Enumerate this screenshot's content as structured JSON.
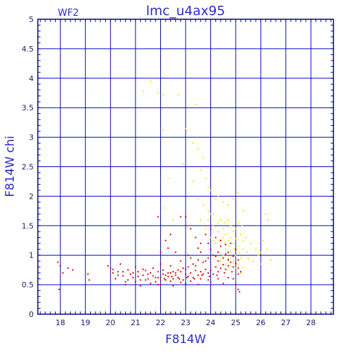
{
  "chart_data": {
    "type": "scatter",
    "title": "lmc_u4ax95",
    "corner_label": "WF2",
    "xlabel": "F814W",
    "ylabel": "F814W  chi",
    "xlim": [
      17.1,
      28.9
    ],
    "ylim": [
      0,
      5
    ],
    "xticks": [
      18,
      19,
      20,
      21,
      22,
      23,
      24,
      25,
      26,
      27,
      28
    ],
    "yticks": [
      0,
      0.5,
      1,
      1.5,
      2,
      2.5,
      3,
      3.5,
      4,
      4.5,
      5
    ],
    "ytick_labels": [
      "0",
      "0.5",
      "1",
      "1.5",
      "2",
      "2.5",
      "3",
      "3.5",
      "4",
      "4.5",
      "5"
    ],
    "grid": true,
    "colors": {
      "axis": "#00008b",
      "grid": "#0000cd",
      "text": "#2a2ad0",
      "series_red": "#e00000",
      "series_yellow": "#f2ea00"
    },
    "series": [
      {
        "color": "#f2ea00",
        "points": [
          [
            21.3,
            3.78
          ],
          [
            21.6,
            3.95
          ],
          [
            21.9,
            3.75
          ],
          [
            22.1,
            3.72
          ],
          [
            22.7,
            3.72
          ],
          [
            22.1,
            3.12
          ],
          [
            23.0,
            3.15
          ],
          [
            23.4,
            3.55
          ],
          [
            22.9,
            2.55
          ],
          [
            22.3,
            2.3
          ],
          [
            23.3,
            2.9
          ],
          [
            23.5,
            2.8
          ],
          [
            23.7,
            2.65
          ],
          [
            23.6,
            2.45
          ],
          [
            23.8,
            2.3
          ],
          [
            23.9,
            2.15
          ],
          [
            24.0,
            2.1
          ],
          [
            23.3,
            2.25
          ],
          [
            22.2,
            1.8
          ],
          [
            22.5,
            1.6
          ],
          [
            23.5,
            1.95
          ],
          [
            23.7,
            1.85
          ],
          [
            23.9,
            1.75
          ],
          [
            24.0,
            1.7
          ],
          [
            24.2,
            1.95
          ],
          [
            24.3,
            2.0
          ],
          [
            24.5,
            1.9
          ],
          [
            24.7,
            1.85
          ],
          [
            24.9,
            1.95
          ],
          [
            25.1,
            2.05
          ],
          [
            25.3,
            1.75
          ],
          [
            24.4,
            1.6
          ],
          [
            24.6,
            1.55
          ],
          [
            24.8,
            1.5
          ],
          [
            25.0,
            1.45
          ],
          [
            25.2,
            1.35
          ],
          [
            24.1,
            1.5
          ],
          [
            24.3,
            1.4
          ],
          [
            24.5,
            1.3
          ],
          [
            24.7,
            1.25
          ],
          [
            24.9,
            1.2
          ],
          [
            25.1,
            1.15
          ],
          [
            25.3,
            1.1
          ],
          [
            24.2,
            1.2
          ],
          [
            24.4,
            1.15
          ],
          [
            24.6,
            1.1
          ],
          [
            24.8,
            1.05
          ],
          [
            25.0,
            1.0
          ],
          [
            25.2,
            0.95
          ],
          [
            24.3,
            1.05
          ],
          [
            24.5,
            1.0
          ],
          [
            24.7,
            0.95
          ],
          [
            24.9,
            0.9
          ],
          [
            25.1,
            0.85
          ],
          [
            25.3,
            0.8
          ],
          [
            24.6,
            1.35
          ],
          [
            24.8,
            1.3
          ],
          [
            25.0,
            1.28
          ],
          [
            25.4,
            1.3
          ],
          [
            25.6,
            1.2
          ],
          [
            25.8,
            1.1
          ],
          [
            26.0,
            1.05
          ],
          [
            26.1,
            1.25
          ],
          [
            26.3,
            1.6
          ],
          [
            26.2,
            1.7
          ],
          [
            25.5,
            0.95
          ],
          [
            25.7,
            0.9
          ],
          [
            25.9,
            1.0
          ],
          [
            26.0,
            0.85
          ],
          [
            26.4,
            0.92
          ],
          [
            24.1,
            1.7
          ],
          [
            24.3,
            1.55
          ],
          [
            23.8,
            1.45
          ],
          [
            23.6,
            1.6
          ],
          [
            24.0,
            1.3
          ],
          [
            24.2,
            0.98
          ],
          [
            24.4,
            0.9
          ],
          [
            24.6,
            0.85
          ],
          [
            24.8,
            0.82
          ],
          [
            25.0,
            0.78
          ],
          [
            25.2,
            0.7
          ],
          [
            24.5,
            1.45
          ],
          [
            24.7,
            1.6
          ],
          [
            24.9,
            1.4
          ],
          [
            25.1,
            1.55
          ],
          [
            25.3,
            1.25
          ],
          [
            24.35,
            1.25
          ],
          [
            24.55,
            1.2
          ],
          [
            24.75,
            1.15
          ],
          [
            24.95,
            1.1
          ],
          [
            25.15,
            1.05
          ],
          [
            23.9,
            1.6
          ],
          [
            24.1,
            1.25
          ],
          [
            25.25,
            1.5
          ],
          [
            25.45,
            1.05
          ],
          [
            26.25,
            1.1
          ]
        ]
      },
      {
        "color": "#e00000",
        "points": [
          [
            17.9,
            0.88
          ],
          [
            18.0,
            0.82
          ],
          [
            18.1,
            0.7
          ],
          [
            18.3,
            0.78
          ],
          [
            18.5,
            0.75
          ],
          [
            17.95,
            0.42
          ],
          [
            19.1,
            0.68
          ],
          [
            19.15,
            0.58
          ],
          [
            19.9,
            0.82
          ],
          [
            20.0,
            0.78
          ],
          [
            20.1,
            0.7
          ],
          [
            20.2,
            0.6
          ],
          [
            20.3,
            0.72
          ],
          [
            20.4,
            0.85
          ],
          [
            20.5,
            0.65
          ],
          [
            20.6,
            0.55
          ],
          [
            20.7,
            0.75
          ],
          [
            20.8,
            0.68
          ],
          [
            20.9,
            0.62
          ],
          [
            21.0,
            0.8
          ],
          [
            21.1,
            0.72
          ],
          [
            21.2,
            0.58
          ],
          [
            21.3,
            0.66
          ],
          [
            21.4,
            0.74
          ],
          [
            21.5,
            0.6
          ],
          [
            21.6,
            0.7
          ],
          [
            21.7,
            0.65
          ],
          [
            21.8,
            0.55
          ],
          [
            21.9,
            0.72
          ],
          [
            22.0,
            0.62
          ],
          [
            22.1,
            0.68
          ],
          [
            22.2,
            0.58
          ],
          [
            22.3,
            0.64
          ],
          [
            22.4,
            0.7
          ],
          [
            22.5,
            0.6
          ],
          [
            22.6,
            0.66
          ],
          [
            22.7,
            0.62
          ],
          [
            22.8,
            0.72
          ],
          [
            22.9,
            0.58
          ],
          [
            23.0,
            0.68
          ],
          [
            23.1,
            0.64
          ],
          [
            23.2,
            0.7
          ],
          [
            23.3,
            0.62
          ],
          [
            23.4,
            0.74
          ],
          [
            23.5,
            0.66
          ],
          [
            23.6,
            0.72
          ],
          [
            23.7,
            0.68
          ],
          [
            23.8,
            0.76
          ],
          [
            23.9,
            0.7
          ],
          [
            24.0,
            0.74
          ],
          [
            24.1,
            0.68
          ],
          [
            24.2,
            0.8
          ],
          [
            24.3,
            0.72
          ],
          [
            24.4,
            0.78
          ],
          [
            24.5,
            0.84
          ],
          [
            24.6,
            0.76
          ],
          [
            24.7,
            0.82
          ],
          [
            24.8,
            0.88
          ],
          [
            24.9,
            0.8
          ],
          [
            25.0,
            0.86
          ],
          [
            25.1,
            0.78
          ],
          [
            25.2,
            0.72
          ],
          [
            24.5,
            0.95
          ],
          [
            24.7,
            1.05
          ],
          [
            24.9,
            0.98
          ],
          [
            25.1,
            0.92
          ],
          [
            24.3,
            0.9
          ],
          [
            24.1,
            1.0
          ],
          [
            23.9,
            0.95
          ],
          [
            23.7,
            0.88
          ],
          [
            23.5,
            0.92
          ],
          [
            23.3,
            0.85
          ],
          [
            23.1,
            0.8
          ],
          [
            22.9,
            0.78
          ],
          [
            22.7,
            0.75
          ],
          [
            22.5,
            0.72
          ],
          [
            22.3,
            0.7
          ],
          [
            22.1,
            0.75
          ],
          [
            21.9,
            0.62
          ],
          [
            21.7,
            0.78
          ],
          [
            21.5,
            0.68
          ],
          [
            21.3,
            0.76
          ],
          [
            21.1,
            0.64
          ],
          [
            20.9,
            0.7
          ],
          [
            20.7,
            0.58
          ],
          [
            20.5,
            0.72
          ],
          [
            20.3,
            0.66
          ],
          [
            20.1,
            0.76
          ],
          [
            22.0,
            0.85
          ],
          [
            22.4,
            0.82
          ],
          [
            22.8,
            0.9
          ],
          [
            23.2,
            0.95
          ],
          [
            23.6,
            1.05
          ],
          [
            24.0,
            1.1
          ],
          [
            24.4,
            1.15
          ],
          [
            24.8,
            1.2
          ],
          [
            25.0,
            1.1
          ],
          [
            24.6,
            1.02
          ],
          [
            24.2,
            0.98
          ],
          [
            23.8,
            0.9
          ],
          [
            23.4,
            0.82
          ],
          [
            23.0,
            0.76
          ],
          [
            22.6,
            0.7
          ],
          [
            22.2,
            0.66
          ],
          [
            21.8,
            0.62
          ],
          [
            21.4,
            0.58
          ],
          [
            21.0,
            0.55
          ],
          [
            20.6,
            0.5
          ],
          [
            22.0,
            0.5
          ],
          [
            22.5,
            0.48
          ],
          [
            23.0,
            0.52
          ],
          [
            23.5,
            0.5
          ],
          [
            24.0,
            0.55
          ],
          [
            24.5,
            0.52
          ],
          [
            25.0,
            0.5
          ],
          [
            25.1,
            0.42
          ],
          [
            25.15,
            0.38
          ],
          [
            24.9,
            0.6
          ],
          [
            24.7,
            0.62
          ],
          [
            24.3,
            0.6
          ],
          [
            23.9,
            0.58
          ],
          [
            23.6,
            0.6
          ],
          [
            23.2,
            0.56
          ],
          [
            22.8,
            0.54
          ],
          [
            22.4,
            0.56
          ],
          [
            21.9,
            0.5
          ],
          [
            21.6,
            0.52
          ],
          [
            21.2,
            0.48
          ],
          [
            22.0,
            1.05
          ],
          [
            22.2,
            1.25
          ],
          [
            22.4,
            1.35
          ],
          [
            22.8,
            1.65
          ],
          [
            23.0,
            1.65
          ],
          [
            23.2,
            1.45
          ],
          [
            23.4,
            1.3
          ],
          [
            23.6,
            1.2
          ],
          [
            23.8,
            1.35
          ],
          [
            24.0,
            1.45
          ],
          [
            24.2,
            1.3
          ],
          [
            24.4,
            1.25
          ],
          [
            24.6,
            1.18
          ],
          [
            21.9,
            1.65
          ],
          [
            22.3,
            1.12
          ],
          [
            22.6,
            1.05
          ],
          [
            23.1,
            1.0
          ],
          [
            23.5,
            1.12
          ],
          [
            23.9,
            1.2
          ],
          [
            24.3,
            1.05
          ],
          [
            24.7,
            0.92
          ],
          [
            25.1,
            0.68
          ],
          [
            24.85,
            0.72
          ],
          [
            24.55,
            0.7
          ],
          [
            24.25,
            0.66
          ],
          [
            23.95,
            0.64
          ],
          [
            23.65,
            0.66
          ],
          [
            23.35,
            0.6
          ],
          [
            23.05,
            0.62
          ],
          [
            22.75,
            0.6
          ],
          [
            22.45,
            0.64
          ],
          [
            22.15,
            0.6
          ]
        ]
      }
    ]
  }
}
